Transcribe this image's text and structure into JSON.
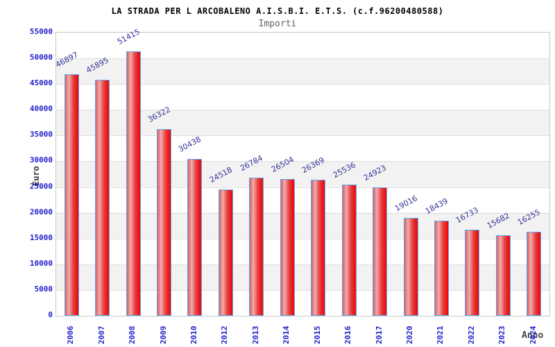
{
  "chart_data": {
    "type": "bar",
    "title": "LA STRADA PER L ARCOBALENO A.I.S.B.I. E.T.S. (c.f.96200480588)",
    "subtitle": "Importi",
    "xlabel": "Anno",
    "ylabel": "Euro",
    "categories": [
      "2006",
      "2007",
      "2008",
      "2009",
      "2010",
      "2012",
      "2013",
      "2014",
      "2015",
      "2016",
      "2017",
      "2020",
      "2021",
      "2022",
      "2023",
      "2024"
    ],
    "values": [
      46897,
      45895,
      51415,
      36322,
      30438,
      24518,
      26784,
      26504,
      26369,
      25536,
      24923,
      19016,
      18439,
      16733,
      15682,
      16255
    ],
    "ylim": [
      0,
      55000
    ],
    "yticks": [
      0,
      5000,
      10000,
      15000,
      20000,
      25000,
      30000,
      35000,
      40000,
      45000,
      50000,
      55000
    ],
    "grid": true,
    "legend_position": "none",
    "band_fill": "alternating horizontal stripes",
    "colors": {
      "bar_gradient": [
        "#d96060",
        "#f2abab",
        "#e64444",
        "#ea1111"
      ],
      "bar_border": "#58a6f0",
      "tick_label": "#2222cc",
      "value_label": "#333399",
      "title": "#000000",
      "subtitle": "#666666",
      "axis_label": "#444444",
      "band": "#f2f2f2",
      "gridline": "#dedede",
      "plot_border": "#c8c8c8",
      "background": "#ffffff"
    }
  }
}
